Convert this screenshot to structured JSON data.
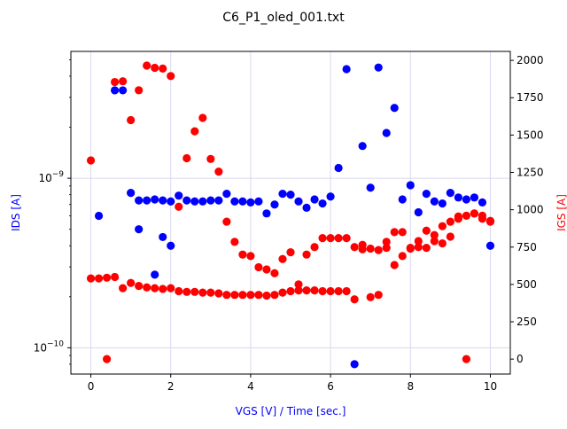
{
  "chart_data": {
    "type": "scatter",
    "title": "C6_P1_oled_001.txt",
    "xlabel": "VGS [V] / Time [sec.]",
    "ylabel_left": "IDS [A]",
    "ylabel_right": "IGS [A]",
    "xlim": [
      -0.5,
      10.5
    ],
    "ylim_left": [
      7e-11,
      5.6e-09
    ],
    "ylim_left_scale": "log",
    "ylim_right": [
      -100,
      2060
    ],
    "grid": true,
    "x_ticks": [
      0,
      2,
      4,
      6,
      8,
      10
    ],
    "y_left_ticks": [
      {
        "value": 1e-10,
        "label": "10⁻¹⁰",
        "mantissa": "10",
        "exponent": "−10"
      },
      {
        "value": 1e-09,
        "label": "10⁻⁹",
        "mantissa": "10",
        "exponent": "−9"
      }
    ],
    "y_right_ticks": [
      0,
      250,
      500,
      750,
      1000,
      1250,
      1500,
      1750,
      2000
    ],
    "colors": {
      "ids": "#0000ff",
      "igs": "#ff0000"
    },
    "series": [
      {
        "name": "IDS [A]",
        "axis": "left",
        "color": "#0000ff",
        "points": [
          [
            0.2,
            6e-10
          ],
          [
            0.6,
            3.3e-09
          ],
          [
            0.8,
            3.3e-09
          ],
          [
            1.0,
            8.2e-10
          ],
          [
            1.2,
            5e-10
          ],
          [
            1.2,
            7.4e-10
          ],
          [
            1.4,
            7.4e-10
          ],
          [
            1.6,
            2.7e-10
          ],
          [
            1.6,
            7.5e-10
          ],
          [
            1.8,
            4.5e-10
          ],
          [
            1.8,
            7.4e-10
          ],
          [
            2.0,
            4e-10
          ],
          [
            2.0,
            7.3e-10
          ],
          [
            2.2,
            7.9e-10
          ],
          [
            2.4,
            7.4e-10
          ],
          [
            2.6,
            7.3e-10
          ],
          [
            2.8,
            7.3e-10
          ],
          [
            3.0,
            7.4e-10
          ],
          [
            3.2,
            7.4e-10
          ],
          [
            3.4,
            8.1e-10
          ],
          [
            3.6,
            7.3e-10
          ],
          [
            3.8,
            7.3e-10
          ],
          [
            4.0,
            7.2e-10
          ],
          [
            4.2,
            7.3e-10
          ],
          [
            4.4,
            6.2e-10
          ],
          [
            4.6,
            7e-10
          ],
          [
            4.8,
            8.1e-10
          ],
          [
            5.0,
            8e-10
          ],
          [
            5.2,
            7.3e-10
          ],
          [
            5.4,
            6.7e-10
          ],
          [
            5.6,
            7.5e-10
          ],
          [
            5.8,
            7.1e-10
          ],
          [
            6.0,
            7.8e-10
          ],
          [
            6.2,
            1.15e-09
          ],
          [
            6.4,
            4.4e-09
          ],
          [
            6.6,
            8e-11
          ],
          [
            6.8,
            1.55e-09
          ],
          [
            7.0,
            8.8e-10
          ],
          [
            7.2,
            4.5e-09
          ],
          [
            7.4,
            1.85e-09
          ],
          [
            7.6,
            2.6e-09
          ],
          [
            7.8,
            7.5e-10
          ],
          [
            8.0,
            9.1e-10
          ],
          [
            8.2,
            6.3e-10
          ],
          [
            8.4,
            8.1e-10
          ],
          [
            8.6,
            7.3e-10
          ],
          [
            8.8,
            7.1e-10
          ],
          [
            9.0,
            8.2e-10
          ],
          [
            9.2,
            7.7e-10
          ],
          [
            9.4,
            7.5e-10
          ],
          [
            9.6,
            7.7e-10
          ],
          [
            9.8,
            7.2e-10
          ],
          [
            10.0,
            4e-10
          ]
        ]
      },
      {
        "name": "IGS [A]",
        "axis": "right",
        "color": "#ff0000",
        "points": [
          [
            0.0,
            1330
          ],
          [
            0.0,
            540
          ],
          [
            0.2,
            540
          ],
          [
            0.4,
            545
          ],
          [
            0.4,
            0
          ],
          [
            0.6,
            550
          ],
          [
            0.6,
            1855
          ],
          [
            0.8,
            1860
          ],
          [
            0.8,
            475
          ],
          [
            1.0,
            1600
          ],
          [
            1.0,
            510
          ],
          [
            1.2,
            1800
          ],
          [
            1.2,
            490
          ],
          [
            1.4,
            1965
          ],
          [
            1.4,
            480
          ],
          [
            1.6,
            1950
          ],
          [
            1.6,
            475
          ],
          [
            1.8,
            1945
          ],
          [
            1.8,
            470
          ],
          [
            2.0,
            1895
          ],
          [
            2.0,
            475
          ],
          [
            2.2,
            1020
          ],
          [
            2.2,
            455
          ],
          [
            2.4,
            1345
          ],
          [
            2.4,
            450
          ],
          [
            2.6,
            1525
          ],
          [
            2.6,
            450
          ],
          [
            2.8,
            1615
          ],
          [
            2.8,
            445
          ],
          [
            3.0,
            1340
          ],
          [
            3.0,
            445
          ],
          [
            3.2,
            1255
          ],
          [
            3.2,
            440
          ],
          [
            3.4,
            920
          ],
          [
            3.4,
            430
          ],
          [
            3.6,
            785
          ],
          [
            3.6,
            430
          ],
          [
            3.8,
            700
          ],
          [
            3.8,
            430
          ],
          [
            4.0,
            690
          ],
          [
            4.0,
            430
          ],
          [
            4.2,
            615
          ],
          [
            4.2,
            430
          ],
          [
            4.4,
            600
          ],
          [
            4.4,
            425
          ],
          [
            4.6,
            575
          ],
          [
            4.6,
            430
          ],
          [
            4.8,
            670
          ],
          [
            4.8,
            445
          ],
          [
            5.0,
            715
          ],
          [
            5.0,
            455
          ],
          [
            5.2,
            500
          ],
          [
            5.2,
            460
          ],
          [
            5.4,
            700
          ],
          [
            5.4,
            460
          ],
          [
            5.6,
            750
          ],
          [
            5.6,
            460
          ],
          [
            5.8,
            810
          ],
          [
            5.8,
            455
          ],
          [
            6.0,
            810
          ],
          [
            6.0,
            455
          ],
          [
            6.2,
            810
          ],
          [
            6.2,
            455
          ],
          [
            6.4,
            810
          ],
          [
            6.4,
            455
          ],
          [
            6.6,
            750
          ],
          [
            6.6,
            400
          ],
          [
            6.8,
            765
          ],
          [
            6.8,
            735
          ],
          [
            7.0,
            740
          ],
          [
            7.0,
            415
          ],
          [
            7.2,
            730
          ],
          [
            7.2,
            430
          ],
          [
            7.4,
            745
          ],
          [
            7.4,
            785
          ],
          [
            7.6,
            630
          ],
          [
            7.6,
            850
          ],
          [
            7.8,
            690
          ],
          [
            7.8,
            850
          ],
          [
            8.0,
            740
          ],
          [
            8.0,
            745
          ],
          [
            8.2,
            790
          ],
          [
            8.2,
            750
          ],
          [
            8.4,
            860
          ],
          [
            8.4,
            745
          ],
          [
            8.6,
            830
          ],
          [
            8.6,
            790
          ],
          [
            8.8,
            775
          ],
          [
            8.8,
            890
          ],
          [
            9.0,
            820
          ],
          [
            9.0,
            920
          ],
          [
            9.2,
            940
          ],
          [
            9.2,
            955
          ],
          [
            9.4,
            960
          ],
          [
            9.4,
            0
          ],
          [
            9.6,
            975
          ],
          [
            9.6,
            975
          ],
          [
            9.8,
            960
          ],
          [
            9.8,
            940
          ],
          [
            10.0,
            920
          ],
          [
            10.0,
            925
          ]
        ]
      }
    ]
  }
}
